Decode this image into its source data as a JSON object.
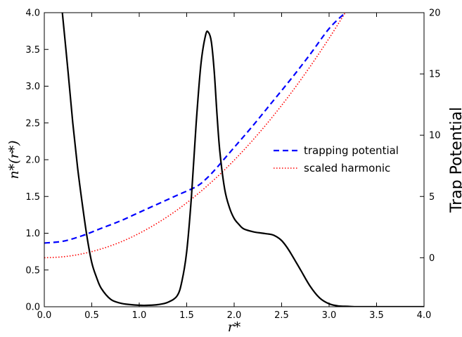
{
  "chart_data": {
    "type": "line",
    "xlabel": "r*",
    "ylabel_left": "n*(r*)",
    "ylabel_right": "Trap Potential",
    "xlim": [
      0,
      4
    ],
    "ylim_left": [
      0,
      4
    ],
    "ylim_right": [
      -4,
      20
    ],
    "x_ticks": [
      "0.0",
      "0.5",
      "1.0",
      "1.5",
      "2.0",
      "2.5",
      "3.0",
      "3.5",
      "4.0"
    ],
    "y_left_ticks": [
      "0.0",
      "0.5",
      "1.0",
      "1.5",
      "2.0",
      "2.5",
      "3.0",
      "3.5",
      "4.0"
    ],
    "y_right_ticks": [
      "0",
      "5",
      "10",
      "15",
      "20"
    ],
    "grid": false,
    "legend": {
      "placement": "center-right",
      "entries": [
        {
          "label": "trapping potential",
          "color": "#0000ff",
          "style": "dashed"
        },
        {
          "label": "scaled harmonic",
          "color": "#ff0000",
          "style": "dotted"
        }
      ]
    },
    "series": [
      {
        "axis": "left",
        "color": "#000000",
        "style": "solid",
        "x": [
          0.19,
          0.25,
          0.3,
          0.35,
          0.4,
          0.45,
          0.5,
          0.55,
          0.6,
          0.7,
          0.8,
          0.9,
          1.0,
          1.1,
          1.2,
          1.3,
          1.4,
          1.45,
          1.5,
          1.55,
          1.6,
          1.65,
          1.7,
          1.73,
          1.76,
          1.79,
          1.82,
          1.85,
          1.9,
          1.95,
          2.0,
          2.05,
          2.1,
          2.2,
          2.3,
          2.4,
          2.45,
          2.5,
          2.55,
          2.6,
          2.7,
          2.8,
          2.9,
          3.0,
          3.1,
          3.2,
          3.3,
          3.5,
          4.0
        ],
        "y": [
          4.0,
          3.2,
          2.5,
          1.9,
          1.4,
          0.95,
          0.6,
          0.4,
          0.25,
          0.1,
          0.05,
          0.03,
          0.02,
          0.02,
          0.03,
          0.06,
          0.15,
          0.35,
          0.75,
          1.5,
          2.5,
          3.3,
          3.7,
          3.73,
          3.6,
          3.2,
          2.6,
          2.1,
          1.6,
          1.35,
          1.2,
          1.12,
          1.06,
          1.02,
          1.0,
          0.98,
          0.95,
          0.9,
          0.82,
          0.72,
          0.5,
          0.28,
          0.12,
          0.04,
          0.01,
          0.005,
          0.0,
          0.0,
          0.0
        ]
      },
      {
        "axis": "right",
        "name": "trapping potential",
        "color": "#0000ff",
        "style": "dashed",
        "x": [
          0.0,
          0.2,
          0.4,
          0.6,
          0.8,
          1.0,
          1.2,
          1.4,
          1.6,
          1.7,
          1.8,
          1.9,
          2.0,
          2.2,
          2.4,
          2.6,
          2.8,
          3.0,
          3.17
        ],
        "y": [
          1.2,
          1.35,
          1.8,
          2.4,
          3.0,
          3.7,
          4.4,
          5.1,
          5.8,
          6.4,
          7.2,
          8.1,
          9.0,
          10.8,
          12.7,
          14.6,
          16.6,
          18.7,
          20.0
        ]
      },
      {
        "axis": "right",
        "name": "scaled harmonic",
        "color": "#ff0000",
        "style": "dotted",
        "x": [
          0.0,
          0.2,
          0.4,
          0.6,
          0.8,
          1.0,
          1.2,
          1.4,
          1.6,
          1.8,
          2.0,
          2.2,
          2.4,
          2.6,
          2.8,
          3.0,
          3.17
        ],
        "y": [
          0.0,
          0.08,
          0.32,
          0.72,
          1.27,
          1.99,
          2.87,
          3.9,
          5.1,
          6.45,
          7.96,
          9.63,
          11.46,
          13.45,
          15.6,
          17.91,
          20.0
        ]
      }
    ]
  }
}
